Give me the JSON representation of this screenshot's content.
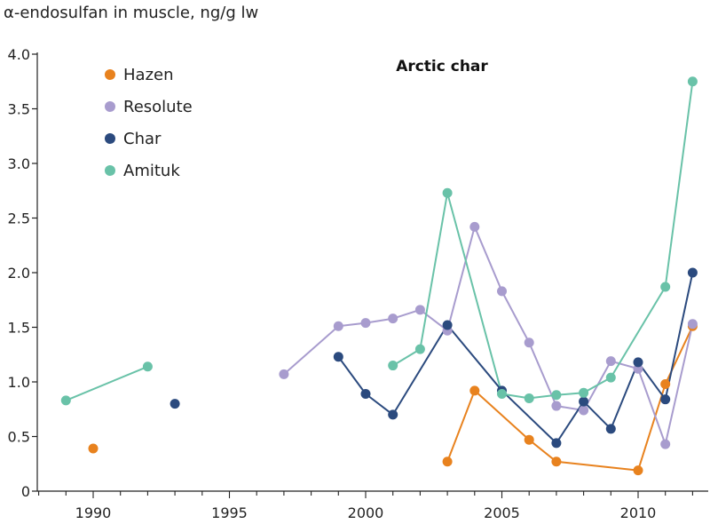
{
  "chart_data": {
    "type": "line",
    "title": "Arctic char",
    "xlabel": "",
    "ylabel": "α-endosulfan in muscle, ng/g lw",
    "xlim": [
      1988,
      2013
    ],
    "ylim": [
      0,
      4.0
    ],
    "xticks": [
      1990,
      1995,
      2000,
      2005,
      2010
    ],
    "yticks": [
      0,
      0.5,
      1.0,
      1.5,
      2.0,
      2.5,
      3.0,
      3.5,
      4.0
    ],
    "ytick_labels": [
      "0",
      "0.5",
      "1.0",
      "1.5",
      "2.0",
      "2.5",
      "3.0",
      "3.5",
      "4.0"
    ],
    "grid": false,
    "legend_position": "top-left",
    "series": [
      {
        "name": "Hazen",
        "color": "#e8821e",
        "segments": [
          [
            [
              1990,
              0.39
            ]
          ],
          [
            [
              2003,
              0.27
            ],
            [
              2004,
              0.92
            ],
            [
              2006,
              0.47
            ],
            [
              2007,
              0.27
            ],
            [
              2010,
              0.19
            ],
            [
              2011,
              0.98
            ],
            [
              2012,
              1.51
            ]
          ]
        ]
      },
      {
        "name": "Resolute",
        "color": "#a89cce",
        "segments": [
          [
            [
              1997,
              1.07
            ],
            [
              1999,
              1.51
            ],
            [
              2000,
              1.54
            ],
            [
              2001,
              1.58
            ],
            [
              2002,
              1.66
            ],
            [
              2003,
              1.47
            ],
            [
              2004,
              2.42
            ],
            [
              2005,
              1.83
            ],
            [
              2006,
              1.36
            ],
            [
              2007,
              0.78
            ],
            [
              2008,
              0.74
            ],
            [
              2009,
              1.19
            ],
            [
              2010,
              1.12
            ],
            [
              2011,
              0.43
            ],
            [
              2012,
              1.53
            ]
          ]
        ]
      },
      {
        "name": "Char",
        "color": "#2b4a7e",
        "segments": [
          [
            [
              1993,
              0.8
            ]
          ],
          [
            [
              1999,
              1.23
            ],
            [
              2000,
              0.89
            ],
            [
              2001,
              0.7
            ],
            [
              2003,
              1.52
            ],
            [
              2005,
              0.92
            ],
            [
              2007,
              0.44
            ],
            [
              2008,
              0.82
            ],
            [
              2009,
              0.57
            ],
            [
              2010,
              1.18
            ],
            [
              2011,
              0.84
            ],
            [
              2012,
              2.0
            ]
          ]
        ]
      },
      {
        "name": "Amituk",
        "color": "#69c2a8",
        "segments": [
          [
            [
              1989,
              0.83
            ],
            [
              1992,
              1.14
            ]
          ],
          [
            [
              2001,
              1.15
            ],
            [
              2002,
              1.3
            ],
            [
              2003,
              2.73
            ],
            [
              2005,
              0.89
            ],
            [
              2006,
              0.85
            ],
            [
              2007,
              0.88
            ],
            [
              2008,
              0.9
            ],
            [
              2009,
              1.04
            ],
            [
              2011,
              1.87
            ],
            [
              2012,
              3.75
            ]
          ]
        ]
      }
    ]
  }
}
